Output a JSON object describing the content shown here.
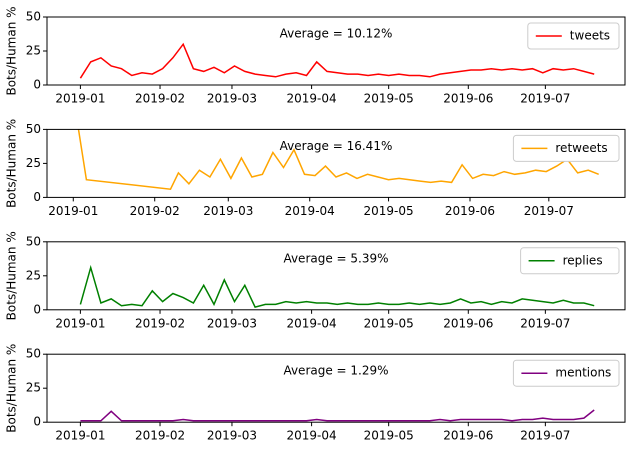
{
  "chart_data": [
    {
      "type": "line",
      "annotation": "Average = 10.12%",
      "ylabel": "Bots/Human %",
      "legend": "upper right",
      "x": [
        0,
        4,
        8,
        12,
        16,
        20,
        24,
        28,
        32,
        36,
        40,
        44,
        48,
        52,
        56,
        60,
        64,
        68,
        72,
        76,
        80,
        84,
        88,
        92,
        96,
        100,
        104,
        108,
        112,
        116,
        120,
        124,
        128,
        132,
        136,
        140,
        144,
        148,
        152,
        156,
        160,
        164,
        168,
        172,
        176,
        180,
        184,
        188,
        192,
        196,
        200
      ],
      "series": [
        {
          "name": "tweets",
          "color": "#ff0000",
          "values": [
            5,
            17,
            20,
            14,
            12,
            7,
            9,
            8,
            12,
            20,
            30,
            12,
            10,
            13,
            9,
            14,
            10,
            8,
            7,
            6,
            8,
            9,
            7,
            17,
            10,
            9,
            8,
            8,
            7,
            8,
            7,
            8,
            7,
            7,
            6,
            8,
            9,
            10,
            11,
            11,
            12,
            11,
            12,
            11,
            12,
            9,
            12,
            11,
            12,
            10,
            8
          ]
        }
      ],
      "xlim": [
        -13,
        212
      ],
      "ylim": [
        0,
        50
      ],
      "yticks": [
        0,
        25,
        50
      ],
      "xticks": [
        {
          "value": 0,
          "label": "2019-01"
        },
        {
          "value": 31,
          "label": "2019-02"
        },
        {
          "value": 59,
          "label": "2019-03"
        },
        {
          "value": 90,
          "label": "2019-04"
        },
        {
          "value": 120,
          "label": "2019-05"
        },
        {
          "value": 151,
          "label": "2019-06"
        },
        {
          "value": 181,
          "label": "2019-07"
        }
      ]
    },
    {
      "type": "line",
      "annotation": "Average = 16.41%",
      "ylabel": "Bots/Human %",
      "legend": "upper right",
      "x": [
        2,
        5,
        37,
        40,
        44,
        48,
        52,
        56,
        60,
        64,
        68,
        72,
        76,
        80,
        84,
        88,
        92,
        96,
        100,
        104,
        108,
        112,
        116,
        120,
        124,
        128,
        132,
        136,
        140,
        144,
        148,
        152,
        156,
        160,
        164,
        168,
        172,
        176,
        180,
        184,
        188,
        192,
        196,
        200
      ],
      "series": [
        {
          "name": "retweets",
          "color": "#ffa500",
          "values": [
            50,
            13,
            6,
            18,
            10,
            20,
            15,
            28,
            14,
            29,
            15,
            17,
            33,
            22,
            35,
            17,
            16,
            23,
            15,
            18,
            14,
            17,
            15,
            13,
            14,
            13,
            12,
            11,
            12,
            11,
            24,
            14,
            17,
            16,
            19,
            17,
            18,
            20,
            19,
            23,
            28,
            18,
            20,
            17
          ]
        }
      ],
      "xlim": [
        -10,
        210
      ],
      "ylim": [
        0,
        50
      ],
      "yticks": [
        0,
        25,
        50
      ],
      "xticks": [
        {
          "value": 0,
          "label": "2019-01"
        },
        {
          "value": 31,
          "label": "2019-02"
        },
        {
          "value": 59,
          "label": "2019-03"
        },
        {
          "value": 90,
          "label": "2019-04"
        },
        {
          "value": 120,
          "label": "2019-05"
        },
        {
          "value": 151,
          "label": "2019-06"
        },
        {
          "value": 181,
          "label": "2019-07"
        }
      ]
    },
    {
      "type": "line",
      "annotation": "Average = 5.39%",
      "ylabel": "Bots/Human %",
      "legend": "upper right",
      "x": [
        0,
        4,
        8,
        12,
        16,
        20,
        24,
        28,
        32,
        36,
        40,
        44,
        48,
        52,
        56,
        60,
        64,
        68,
        72,
        76,
        80,
        84,
        88,
        92,
        96,
        100,
        104,
        108,
        112,
        116,
        120,
        124,
        128,
        132,
        136,
        140,
        144,
        148,
        152,
        156,
        160,
        164,
        168,
        172,
        176,
        180,
        184,
        188,
        192,
        196,
        200
      ],
      "series": [
        {
          "name": "replies",
          "color": "#008000",
          "values": [
            4,
            31,
            5,
            8,
            3,
            4,
            3,
            14,
            6,
            12,
            9,
            5,
            18,
            4,
            22,
            6,
            18,
            2,
            4,
            4,
            6,
            5,
            6,
            5,
            5,
            4,
            5,
            4,
            4,
            5,
            4,
            4,
            5,
            4,
            5,
            4,
            5,
            8,
            5,
            6,
            4,
            6,
            5,
            8,
            7,
            6,
            5,
            7,
            5,
            5,
            3
          ]
        }
      ],
      "xlim": [
        -13,
        212
      ],
      "ylim": [
        0,
        50
      ],
      "yticks": [
        0,
        25,
        50
      ],
      "xticks": [
        {
          "value": 0,
          "label": "2019-01"
        },
        {
          "value": 31,
          "label": "2019-02"
        },
        {
          "value": 59,
          "label": "2019-03"
        },
        {
          "value": 90,
          "label": "2019-04"
        },
        {
          "value": 120,
          "label": "2019-05"
        },
        {
          "value": 151,
          "label": "2019-06"
        },
        {
          "value": 181,
          "label": "2019-07"
        }
      ]
    },
    {
      "type": "line",
      "annotation": "Average = 1.29%",
      "ylabel": "Bots/Human %",
      "legend": "upper right",
      "x": [
        0,
        4,
        8,
        12,
        16,
        20,
        24,
        28,
        32,
        36,
        40,
        44,
        48,
        52,
        56,
        60,
        64,
        68,
        72,
        76,
        80,
        84,
        88,
        92,
        96,
        100,
        104,
        108,
        112,
        116,
        120,
        124,
        128,
        132,
        136,
        140,
        144,
        148,
        152,
        156,
        160,
        164,
        168,
        172,
        176,
        180,
        184,
        188,
        192,
        196,
        200
      ],
      "series": [
        {
          "name": "mentions",
          "color": "#800080",
          "values": [
            1,
            1,
            1,
            8,
            1,
            1,
            1,
            1,
            1,
            1,
            2,
            1,
            1,
            1,
            1,
            1,
            1,
            1,
            1,
            1,
            1,
            1,
            1,
            2,
            1,
            1,
            1,
            1,
            1,
            1,
            1,
            1,
            1,
            1,
            1,
            2,
            1,
            2,
            2,
            2,
            2,
            2,
            1,
            2,
            2,
            3,
            2,
            2,
            2,
            3,
            9
          ]
        }
      ],
      "xlim": [
        -13,
        212
      ],
      "ylim": [
        0,
        50
      ],
      "yticks": [
        0,
        25,
        50
      ],
      "xticks": [
        {
          "value": 0,
          "label": "2019-01"
        },
        {
          "value": 31,
          "label": "2019-02"
        },
        {
          "value": 59,
          "label": "2019-03"
        },
        {
          "value": 90,
          "label": "2019-04"
        },
        {
          "value": 120,
          "label": "2019-05"
        },
        {
          "value": 151,
          "label": "2019-06"
        },
        {
          "value": 181,
          "label": "2019-07"
        }
      ]
    }
  ]
}
